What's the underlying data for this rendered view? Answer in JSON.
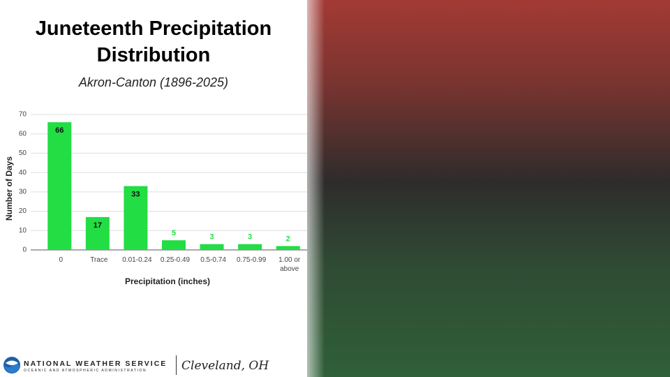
{
  "chart_data": {
    "type": "bar",
    "title": "Juneteenth Precipitation Distribution",
    "subtitle": "Akron-Canton (1896-2025)",
    "x_label": "Precipitation (inches)",
    "y_label": "Number of Days",
    "categories": [
      "0",
      "Trace",
      "0.01-0.24",
      "0.25-0.49",
      "0.5-0.74",
      "0.75-0.99",
      "1.00 or above"
    ],
    "values": [
      66,
      17,
      33,
      5,
      3,
      3,
      2
    ],
    "color": "#22dd44",
    "ylim": [
      0,
      70
    ],
    "yticks": [
      0,
      10,
      20,
      30,
      40,
      50,
      60,
      70
    ],
    "grid": true
  },
  "footer": {
    "agency": "NATIONAL WEATHER SERVICE",
    "agency_sub": "OCEANIC AND ATMOSPHERIC ADMINISTRATION",
    "office": "Cleveland, OH"
  }
}
